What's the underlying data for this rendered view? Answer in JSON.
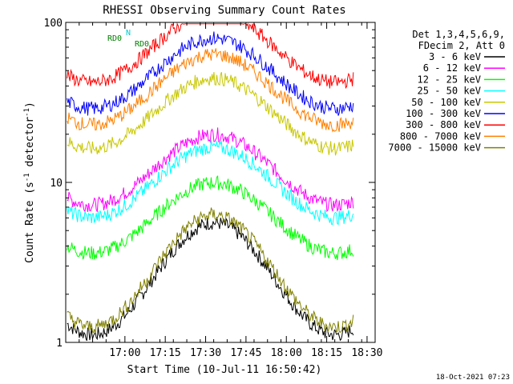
{
  "chart_data": {
    "type": "line",
    "title": "RHESSI Observing Summary Count Rates",
    "xlabel": "Start Time (10-Jul-11 16:50:42)",
    "ylabel_main": "Count Rate (s",
    "ylabel_sup": "-1",
    "ylabel_rest": " detector",
    "ylabel_sup2": "-1",
    "ylabel_close": ")",
    "yscale": "log",
    "ylim": [
      1,
      100
    ],
    "y_ticks": [
      1,
      10,
      100
    ],
    "y_tick_labels": [
      "1",
      "10",
      "100"
    ],
    "x_ticks": [
      "17:00",
      "17:15",
      "17:30",
      "17:45",
      "18:00",
      "18:15",
      "18:30"
    ],
    "x_tick_minutes": [
      17.0,
      32.0,
      47.0,
      62.0,
      77.0,
      92.0,
      107.0
    ],
    "xlim_minutes_from_1650": [
      -5.0,
      110.0
    ],
    "legend_header": [
      "Det 1,3,4,5,6,9,",
      "FDecim 2, Att 0"
    ],
    "legend_placement": "right",
    "series": [
      {
        "name": "3 - 6 keV",
        "color": "#000000",
        "level": 2.5
      },
      {
        "name": "6 - 12 keV",
        "color": "#ff00ff",
        "level": 12
      },
      {
        "name": "12 - 25 keV",
        "color": "#00ff00",
        "level": 6
      },
      {
        "name": "25 - 50 keV",
        "color": "#00ffff",
        "level": 10
      },
      {
        "name": "50 - 100 keV",
        "color": "#c8c800",
        "level": 27
      },
      {
        "name": "100 - 300 keV",
        "color": "#0000ff",
        "level": 48
      },
      {
        "name": "300 - 800 keV",
        "color": "#ff0000",
        "level": 70
      },
      {
        "name": "800 - 7000 keV",
        "color": "#ff8000",
        "level": 38
      },
      {
        "name": "7000 - 15000 keV",
        "color": "#808000",
        "level": 2.8
      }
    ],
    "annotations": {
      "flags": [
        "N",
        "RD0",
        "RD0"
      ],
      "footer_date": "18-Oct-2021 07:23"
    },
    "grid": false
  }
}
